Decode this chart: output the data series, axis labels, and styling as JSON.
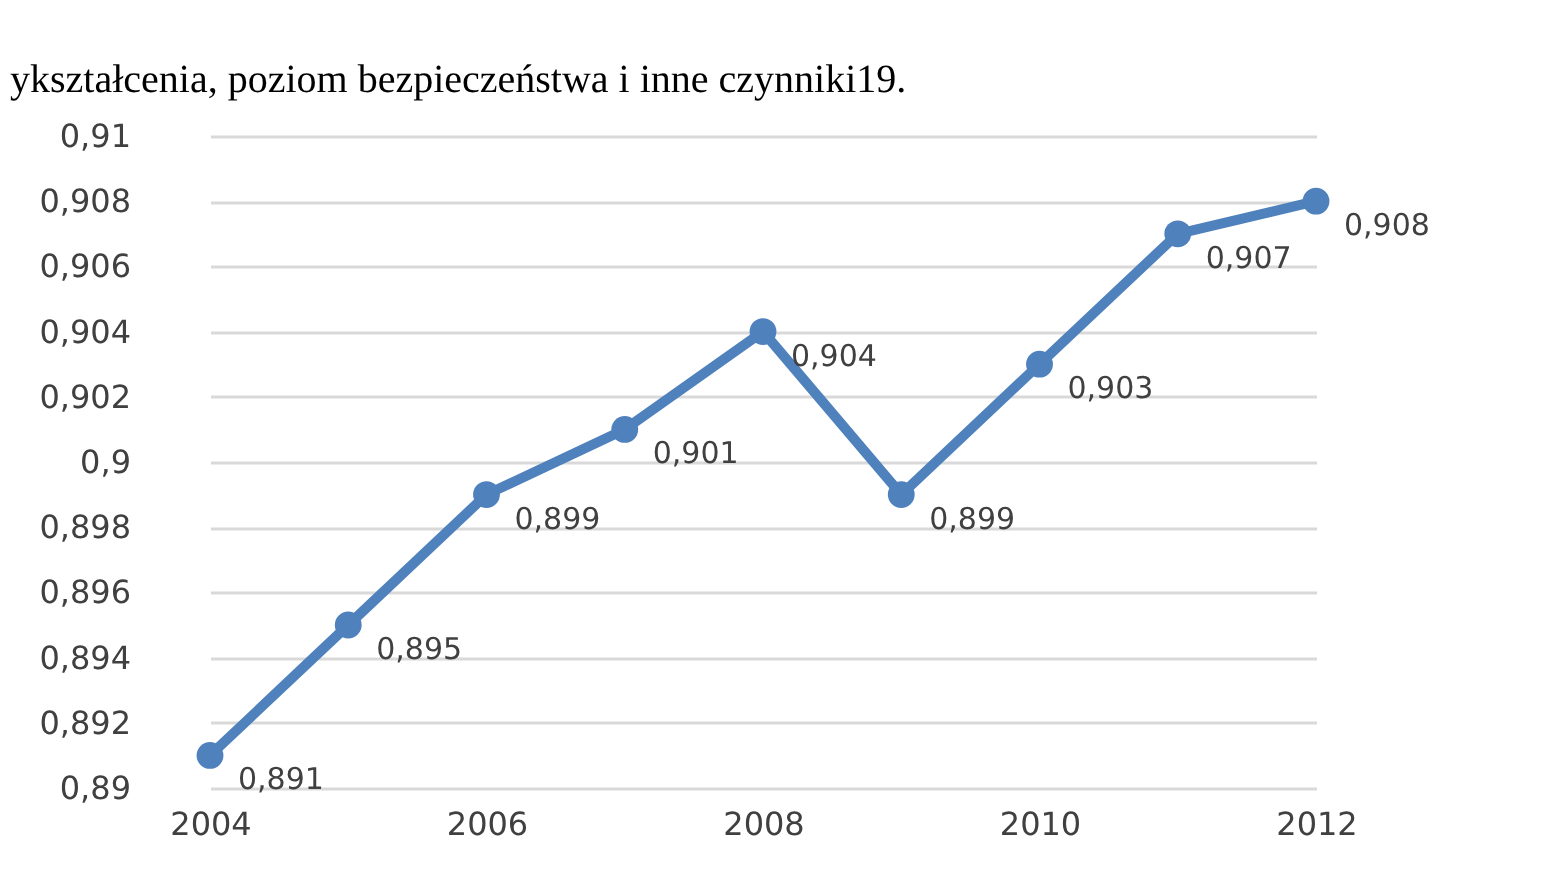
{
  "chart_data": {
    "type": "line",
    "x": [
      2004,
      2005,
      2006,
      2007,
      2008,
      2009,
      2010,
      2011,
      2012
    ],
    "series": [
      {
        "color": "#4f81bd",
        "values": [
          0.891,
          0.895,
          0.899,
          0.901,
          0.904,
          0.899,
          0.903,
          0.907,
          0.908
        ],
        "value_labels": [
          "0,891",
          "0,895",
          "0,899",
          "0,901",
          "0,904",
          "0,899",
          "0,903",
          "0,907",
          "0,908"
        ]
      }
    ],
    "xlim": [
      2004,
      2012
    ],
    "xticks": [
      2004,
      2006,
      2008,
      2010,
      2012
    ],
    "ylim": [
      0.89,
      0.91
    ],
    "yticks": [
      {
        "value": 0.89,
        "label": "0,89"
      },
      {
        "value": 0.892,
        "label": "0,892"
      },
      {
        "value": 0.894,
        "label": "0,894"
      },
      {
        "value": 0.896,
        "label": "0,896"
      },
      {
        "value": 0.898,
        "label": "0,898"
      },
      {
        "value": 0.9,
        "label": "0,9"
      },
      {
        "value": 0.902,
        "label": "0,902"
      },
      {
        "value": 0.904,
        "label": "0,904"
      },
      {
        "value": 0.906,
        "label": "0,906"
      },
      {
        "value": 0.908,
        "label": "0,908"
      },
      {
        "value": 0.91,
        "label": "0,91"
      }
    ],
    "grid": "y",
    "marker": "circle",
    "line_style": "solid",
    "annotations": [
      "ykształcenia, poziom bezpieczeństwa i inne czynniki19."
    ]
  }
}
